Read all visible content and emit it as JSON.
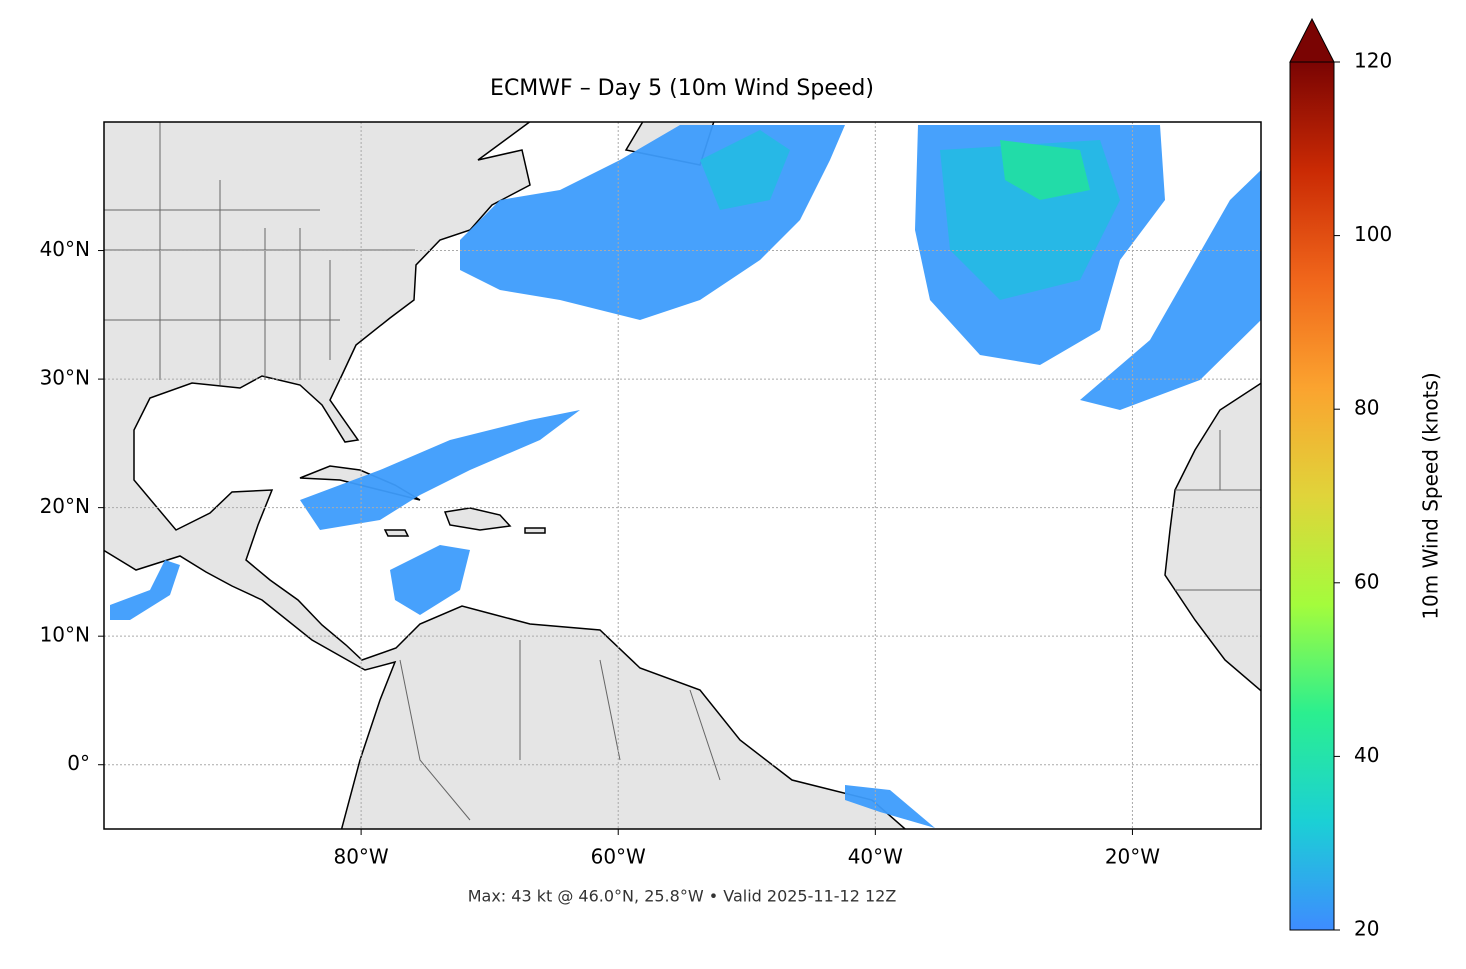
{
  "chart_data": {
    "type": "map",
    "title": "ECMWF – Day 5 (10m Wind Speed)",
    "annotation": "Max: 43 kt @ 46.0°N, 25.8°W • Valid 2025-11-12 12Z",
    "xlim": [
      -100,
      -10
    ],
    "ylim": [
      -5,
      50
    ],
    "xticks": [
      {
        "value": -80,
        "label": "80°W"
      },
      {
        "value": -60,
        "label": "60°W"
      },
      {
        "value": -40,
        "label": "40°W"
      },
      {
        "value": -20,
        "label": "20°W"
      }
    ],
    "yticks": [
      {
        "value": 0,
        "label": "0°"
      },
      {
        "value": 10,
        "label": "10°N"
      },
      {
        "value": 20,
        "label": "20°N"
      },
      {
        "value": 30,
        "label": "30°N"
      },
      {
        "value": 40,
        "label": "40°N"
      }
    ],
    "grid": true,
    "colorbar": {
      "label": "10m Wind Speed (knots)",
      "lim": [
        20,
        120
      ],
      "ticks": [
        20,
        40,
        60,
        80,
        100,
        120
      ],
      "colors": [
        "#3e8cff",
        "#1bd0d5",
        "#2bef8f",
        "#a4fc3c",
        "#e0d43a",
        "#fba32f",
        "#f0661b",
        "#ca2a04",
        "#7a0403"
      ],
      "extend": "max"
    }
  }
}
